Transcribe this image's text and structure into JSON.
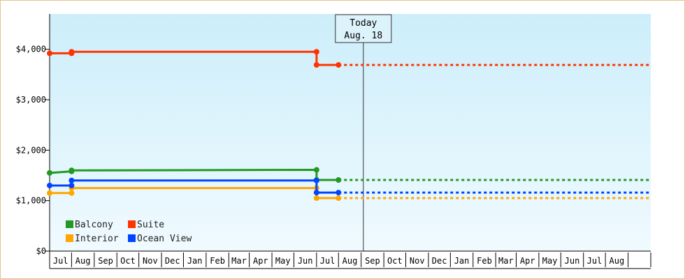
{
  "chart_data": {
    "type": "line",
    "step": true,
    "title": "",
    "xlabel": "",
    "ylabel": "",
    "ylim": [
      0,
      4700
    ],
    "x_range": [
      "2016-06-15",
      "2018-09-15"
    ],
    "y_ticks": [
      {
        "value": 0,
        "label": "$0"
      },
      {
        "value": 1000,
        "label": "$1,000"
      },
      {
        "value": 2000,
        "label": "$2,000"
      },
      {
        "value": 3000,
        "label": "$3,000"
      },
      {
        "value": 4000,
        "label": "$4,000"
      }
    ],
    "month_ticks": [
      "2016-06-15",
      "2016-07-15",
      "2016-08-15",
      "2016-09-15",
      "2016-10-15",
      "2016-11-15",
      "2016-12-15",
      "2017-01-15",
      "2017-02-15",
      "2017-03-15",
      "2017-04-15",
      "2017-05-15",
      "2017-06-15",
      "2017-07-15",
      "2017-08-15",
      "2017-09-15",
      "2017-10-15",
      "2017-11-15",
      "2017-12-15",
      "2018-01-15",
      "2018-02-15",
      "2018-03-15",
      "2018-04-15",
      "2018-05-15",
      "2018-06-15",
      "2018-07-15",
      "2018-08-15",
      "2018-09-15"
    ],
    "month_labels": [
      {
        "label": "Jul",
        "start": "2016-06-15",
        "end": "2016-07-15"
      },
      {
        "label": "Aug",
        "start": "2016-07-15",
        "end": "2016-08-15"
      },
      {
        "label": "Sep",
        "start": "2016-08-15",
        "end": "2016-09-15"
      },
      {
        "label": "Oct",
        "start": "2016-09-15",
        "end": "2016-10-15"
      },
      {
        "label": "Nov",
        "start": "2016-10-15",
        "end": "2016-11-15"
      },
      {
        "label": "Dec",
        "start": "2016-11-15",
        "end": "2016-12-15"
      },
      {
        "label": "Jan",
        "start": "2016-12-15",
        "end": "2017-01-15"
      },
      {
        "label": "Feb",
        "start": "2017-01-15",
        "end": "2017-02-15"
      },
      {
        "label": "Mar",
        "start": "2017-02-15",
        "end": "2017-03-15"
      },
      {
        "label": "Apr",
        "start": "2017-03-15",
        "end": "2017-04-15"
      },
      {
        "label": "May",
        "start": "2017-04-15",
        "end": "2017-05-15"
      },
      {
        "label": "Jun",
        "start": "2017-05-15",
        "end": "2017-06-15"
      },
      {
        "label": "Jul",
        "start": "2017-06-15",
        "end": "2017-07-15"
      },
      {
        "label": "Aug",
        "start": "2017-07-15",
        "end": "2017-08-15"
      },
      {
        "label": "Sep",
        "start": "2017-08-15",
        "end": "2017-09-15"
      },
      {
        "label": "Oct",
        "start": "2017-09-15",
        "end": "2017-10-15"
      },
      {
        "label": "Nov",
        "start": "2017-10-15",
        "end": "2017-11-15"
      },
      {
        "label": "Dec",
        "start": "2017-11-15",
        "end": "2017-12-15"
      },
      {
        "label": "Jan",
        "start": "2017-12-15",
        "end": "2018-01-15"
      },
      {
        "label": "Feb",
        "start": "2018-01-15",
        "end": "2018-02-15"
      },
      {
        "label": "Mar",
        "start": "2018-02-15",
        "end": "2018-03-15"
      },
      {
        "label": "Apr",
        "start": "2018-03-15",
        "end": "2018-04-15"
      },
      {
        "label": "May",
        "start": "2018-04-15",
        "end": "2018-05-15"
      },
      {
        "label": "Jun",
        "start": "2018-05-15",
        "end": "2018-06-15"
      },
      {
        "label": "Jul",
        "start": "2018-06-15",
        "end": "2018-07-15"
      },
      {
        "label": "Aug",
        "start": "2018-07-15",
        "end": "2018-08-15"
      }
    ],
    "today": {
      "date": "2017-08-18",
      "label_line1": "Today",
      "label_line2": "Aug. 18"
    },
    "projection_end": "2018-09-15",
    "series": [
      {
        "name": "Balcony",
        "color": "#229922",
        "points": [
          {
            "date": "2016-06-15",
            "value": 1550
          },
          {
            "date": "2016-07-15",
            "value": 1580
          },
          {
            "date": "2016-07-15",
            "value": 1600
          },
          {
            "date": "2017-06-15",
            "value": 1610
          },
          {
            "date": "2017-06-15",
            "value": 1410
          },
          {
            "date": "2017-07-15",
            "value": 1410
          }
        ]
      },
      {
        "name": "Suite",
        "color": "#ff3300",
        "points": [
          {
            "date": "2016-06-15",
            "value": 3920
          },
          {
            "date": "2016-07-15",
            "value": 3920
          },
          {
            "date": "2016-07-15",
            "value": 3950
          },
          {
            "date": "2017-06-15",
            "value": 3950
          },
          {
            "date": "2017-06-15",
            "value": 3690
          },
          {
            "date": "2017-07-15",
            "value": 3690
          }
        ]
      },
      {
        "name": "Interior",
        "color": "#ffa500",
        "points": [
          {
            "date": "2016-06-15",
            "value": 1150
          },
          {
            "date": "2016-07-15",
            "value": 1150
          },
          {
            "date": "2016-07-15",
            "value": 1250
          },
          {
            "date": "2017-06-15",
            "value": 1250
          },
          {
            "date": "2017-06-15",
            "value": 1050
          },
          {
            "date": "2017-07-15",
            "value": 1050
          }
        ]
      },
      {
        "name": "Ocean View",
        "color": "#0044ff",
        "points": [
          {
            "date": "2016-06-15",
            "value": 1300
          },
          {
            "date": "2016-07-15",
            "value": 1300
          },
          {
            "date": "2016-07-15",
            "value": 1400
          },
          {
            "date": "2017-06-15",
            "value": 1400
          },
          {
            "date": "2017-06-15",
            "value": 1160
          },
          {
            "date": "2017-07-15",
            "value": 1160
          }
        ]
      }
    ],
    "legend_placement": "bottom-left",
    "background_gradient": [
      "#cceefa",
      "#f0faff"
    ],
    "grid": false
  }
}
